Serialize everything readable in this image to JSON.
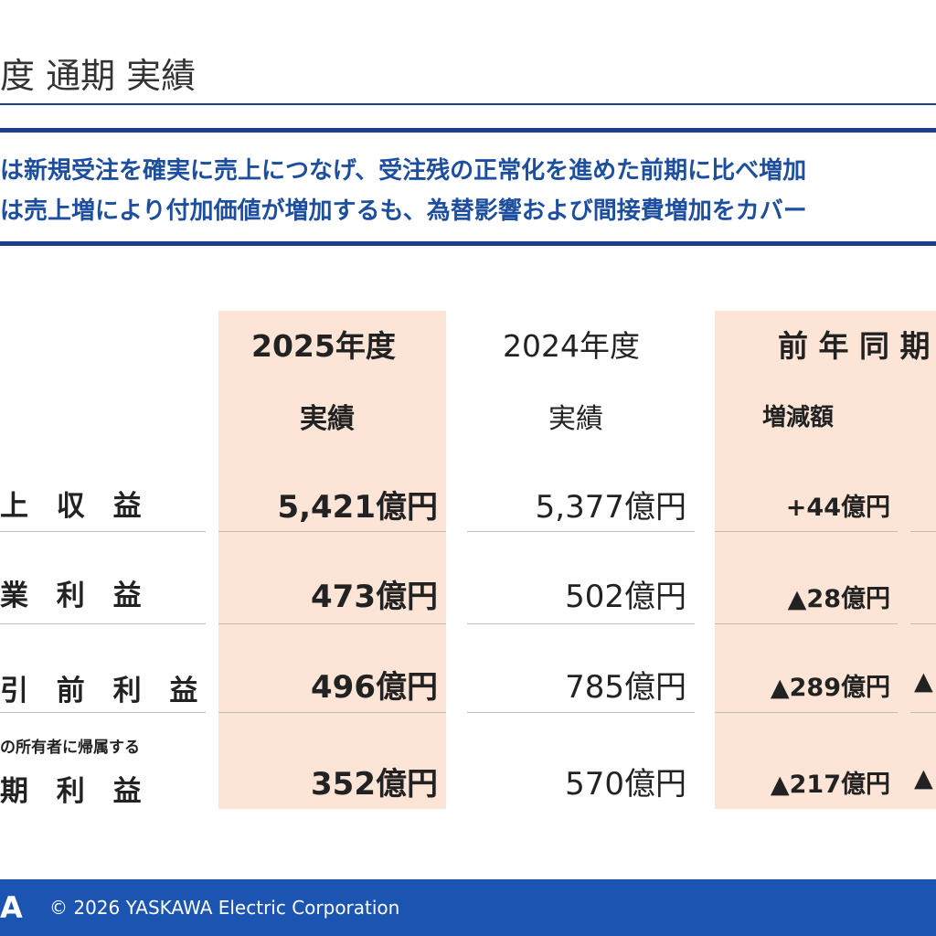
{
  "title": "度 通期 実績",
  "summary": [
    "は新規受注を確実に売上につなげ、受注残の正常化を進めた前期に比べ増加",
    "は売上増により付加価値が増加するも、為替影響および間接費増加をカバー"
  ],
  "columns": {
    "current": {
      "year": "2025年度",
      "label": "実績"
    },
    "previous": {
      "year": "2024年度",
      "label": "実績"
    },
    "yoy": {
      "title": "前 年 同 期",
      "label": "増減額"
    }
  },
  "rows": [
    {
      "label": "上 収 益",
      "small": "",
      "current": "5,421億円",
      "previous": "5,377億円",
      "diff": "+44億円",
      "extra": ""
    },
    {
      "label": "業 利 益",
      "small": "",
      "current": "473億円",
      "previous": "502億円",
      "diff": "▲28億円",
      "extra": ""
    },
    {
      "label": "引 前 利 益",
      "small": "",
      "current": "496億円",
      "previous": "785億円",
      "diff": "▲289億円",
      "extra": "▲"
    },
    {
      "label": "期 利 益",
      "small": "の所有者に帰属する",
      "current": "352億円",
      "previous": "570億円",
      "diff": "▲217億円",
      "extra": "▲"
    }
  ],
  "footer": {
    "logo": "A",
    "copyright": "© 2026 YASKAWA Electric Corporation",
    "color": "#1b55b1"
  },
  "colors": {
    "accent": "#1b3f8c",
    "highlight": "#fce5d6",
    "summary_text": "#1d4f9e"
  }
}
